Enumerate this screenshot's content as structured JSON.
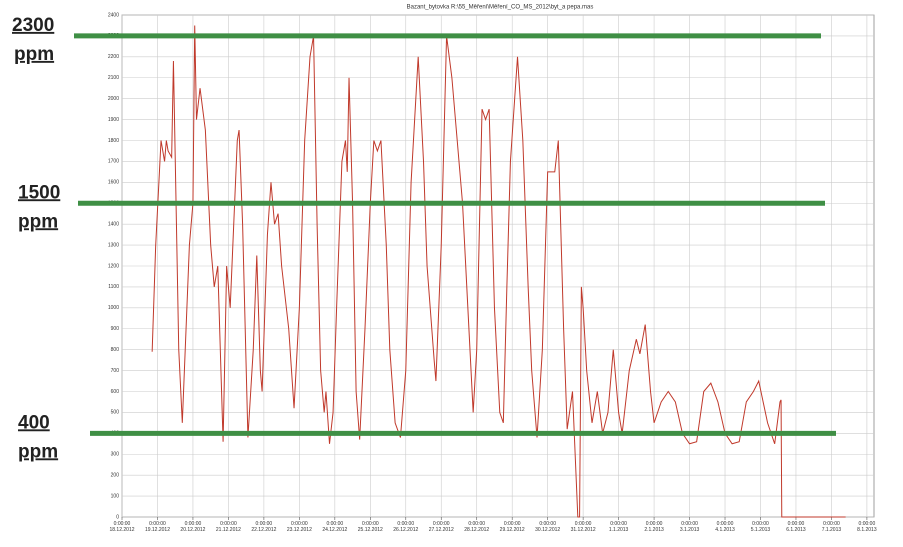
{
  "chart_data": {
    "type": "line",
    "title": "Bazant_bytovka   R:\\55_Měření\\Měření_CO_MS_2012\\byt_a pepa.mas",
    "x": [
      0.85,
      0.95,
      1.1,
      1.2,
      1.25,
      1.3,
      1.4,
      1.45,
      1.6,
      1.7,
      1.9,
      2.0,
      2.05,
      2.1,
      2.2,
      2.35,
      2.5,
      2.6,
      2.7,
      2.85,
      2.95,
      3.05,
      3.25,
      3.3,
      3.4,
      3.55,
      3.7,
      3.8,
      3.9,
      3.95,
      4.1,
      4.2,
      4.3,
      4.4,
      4.5,
      4.7,
      4.85,
      5.0,
      5.15,
      5.3,
      5.4,
      5.5,
      5.6,
      5.7,
      5.75,
      5.85,
      5.95,
      6.05,
      6.2,
      6.3,
      6.35,
      6.4,
      6.5,
      6.6,
      6.7,
      6.85,
      7.0,
      7.1,
      7.2,
      7.3,
      7.45,
      7.55,
      7.7,
      7.85,
      8.0,
      8.15,
      8.35,
      8.5,
      8.6,
      8.8,
      8.85,
      9.0,
      9.15,
      9.3,
      9.45,
      9.6,
      9.75,
      9.9,
      10.0,
      10.15,
      10.25,
      10.35,
      10.5,
      10.65,
      10.75,
      10.85,
      10.95,
      11.15,
      11.3,
      11.45,
      11.55,
      11.7,
      11.85,
      12.0,
      12.2,
      12.3,
      12.45,
      12.55,
      12.7,
      12.85,
      12.9,
      12.95,
      13.0,
      13.1,
      13.25,
      13.4,
      13.55,
      13.7,
      13.85,
      14.0,
      14.1,
      14.3,
      14.5,
      14.6,
      14.75,
      14.9,
      15.0,
      15.2,
      15.4,
      15.6,
      15.8,
      16.0,
      16.2,
      16.4,
      16.6,
      16.8,
      17.0,
      17.2,
      17.4,
      17.6,
      17.8,
      17.95,
      18.2,
      18.4,
      18.55,
      18.58,
      18.6,
      20.4
    ],
    "series": [
      {
        "name": "CO2",
        "color": "#c0392b",
        "values": [
          790,
          1300,
          1800,
          1700,
          1800,
          1750,
          1720,
          2180,
          800,
          450,
          1300,
          1500,
          2350,
          1900,
          2050,
          1850,
          1300,
          1100,
          1200,
          360,
          1200,
          1000,
          1800,
          1850,
          1400,
          380,
          800,
          1250,
          700,
          600,
          1350,
          1600,
          1400,
          1450,
          1200,
          900,
          520,
          1000,
          1800,
          2200,
          2300,
          1400,
          700,
          500,
          600,
          350,
          500,
          1000,
          1700,
          1800,
          1650,
          2100,
          1500,
          600,
          370,
          900,
          1500,
          1800,
          1750,
          1800,
          1300,
          800,
          450,
          380,
          700,
          1600,
          2200,
          1700,
          1200,
          750,
          650,
          1300,
          2300,
          2100,
          1800,
          1500,
          1000,
          500,
          800,
          1950,
          1900,
          1950,
          1000,
          500,
          450,
          1100,
          1700,
          2200,
          1800,
          1100,
          700,
          380,
          800,
          1650,
          1650,
          1800,
          900,
          420,
          600,
          0,
          0,
          1100,
          1000,
          700,
          450,
          600,
          400,
          500,
          800,
          500,
          400,
          700,
          850,
          780,
          920,
          600,
          450,
          550,
          600,
          550,
          400,
          350,
          360,
          600,
          640,
          550,
          400,
          350,
          360,
          550,
          600,
          650,
          450,
          350,
          550,
          560,
          0,
          0
        ]
      }
    ],
    "xlim": [
      0,
      21.2
    ],
    "xticks": [
      {
        "value": 0,
        "label": "0:00:00 18.12.2012"
      },
      {
        "value": 1,
        "label": "0:00:00 19.12.2012"
      },
      {
        "value": 2,
        "label": "0:00:00 20.12.2012"
      },
      {
        "value": 3,
        "label": "0:00:00 21.12.2012"
      },
      {
        "value": 4,
        "label": "0:00:00 22.12.2012"
      },
      {
        "value": 5,
        "label": "0:00:00 23.12.2012"
      },
      {
        "value": 6,
        "label": "0:00:00 24.12.2012"
      },
      {
        "value": 7,
        "label": "0:00:00 25.12.2012"
      },
      {
        "value": 8,
        "label": "0:00:00 26.12.2012"
      },
      {
        "value": 9,
        "label": "0:00:00 27.12.2012"
      },
      {
        "value": 10,
        "label": "0:00:00 28.12.2012"
      },
      {
        "value": 11,
        "label": "0:00:00 29.12.2012"
      },
      {
        "value": 12,
        "label": "0:00:00 30.12.2012"
      },
      {
        "value": 13,
        "label": "0:00:00 31.12.2012"
      },
      {
        "value": 14,
        "label": "0:00:00 1.1.2013"
      },
      {
        "value": 15,
        "label": "0:00:00 2.1.2013"
      },
      {
        "value": 16,
        "label": "0:00:00 3.1.2013"
      },
      {
        "value": 17,
        "label": "0:00:00 4.1.2013"
      },
      {
        "value": 18,
        "label": "0:00:00 5.1.2013"
      },
      {
        "value": 19,
        "label": "0:00:00 6.1.2013"
      },
      {
        "value": 20,
        "label": "0:00:00 7.1.2013"
      },
      {
        "value": 21,
        "label": "0:00:00 8.1.2013"
      }
    ],
    "ylim": [
      0,
      2400
    ],
    "yticks": [
      0,
      100,
      200,
      300,
      400,
      500,
      600,
      700,
      800,
      900,
      1000,
      1100,
      1200,
      1300,
      1400,
      1500,
      1600,
      1700,
      1800,
      1900,
      2000,
      2100,
      2200,
      2300,
      2400
    ],
    "grid": true,
    "annotations": [
      {
        "text": "2300",
        "unit": "ppm",
        "value": 2300,
        "color": "#3f8f45"
      },
      {
        "text": "1500",
        "unit": "ppm",
        "value": 1500,
        "color": "#3f8f45"
      },
      {
        "text": "400",
        "unit": "ppm",
        "value": 400,
        "color": "#3f8f45"
      }
    ]
  }
}
